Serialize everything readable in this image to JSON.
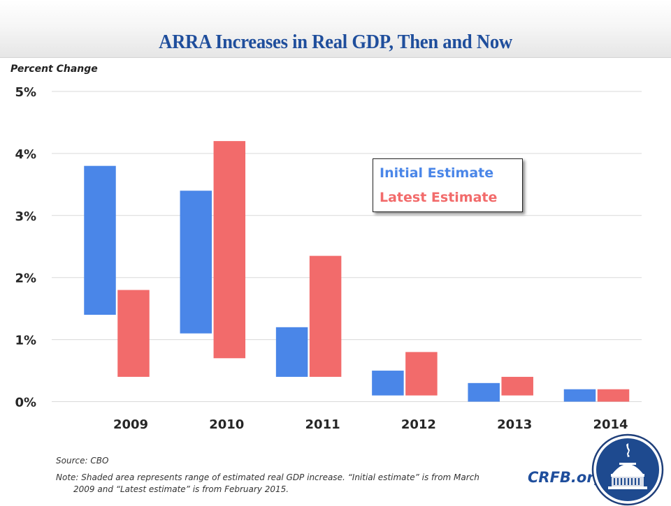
{
  "header": {
    "title": "ARRA Increases in Real GDP, Then and Now"
  },
  "footer": {
    "source": "Source: CBO",
    "note_line1": "Note: Shaded area represents range of estimated real GDP increase. “Initial estimate” is from March",
    "note_line2": "2009 and “Latest estimate” is from February 2015.",
    "brand": "CRFB.org",
    "logo_icon": "capitol-dome-logo-icon"
  },
  "colors": {
    "initial": "#4a86e8",
    "latest": "#f26b6b",
    "title": "#1f4e9c",
    "grid": "#d9d9d9"
  },
  "chart_data": {
    "type": "bar",
    "subtype": "floating-range",
    "title": "ARRA Increases in Real GDP, Then and Now",
    "ylabel": "Percent Change",
    "xlabel": "",
    "ylim": [
      0,
      5
    ],
    "yticks": [
      0,
      1,
      2,
      3,
      4,
      5
    ],
    "ytick_labels": [
      "0%",
      "1%",
      "2%",
      "3%",
      "4%",
      "5%"
    ],
    "grid": true,
    "legend_position": "upper-center-right",
    "categories": [
      "2009",
      "2010",
      "2011",
      "2012",
      "2013",
      "2014"
    ],
    "series": [
      {
        "name": "Initial Estimate",
        "low": [
          1.4,
          1.1,
          0.4,
          0.1,
          0.0,
          0.0
        ],
        "high": [
          3.8,
          3.4,
          1.2,
          0.5,
          0.3,
          0.2
        ]
      },
      {
        "name": "Latest Estimate",
        "low": [
          0.4,
          0.7,
          0.4,
          0.1,
          0.1,
          0.0
        ],
        "high": [
          1.8,
          4.2,
          2.35,
          0.8,
          0.4,
          0.2
        ]
      }
    ]
  }
}
